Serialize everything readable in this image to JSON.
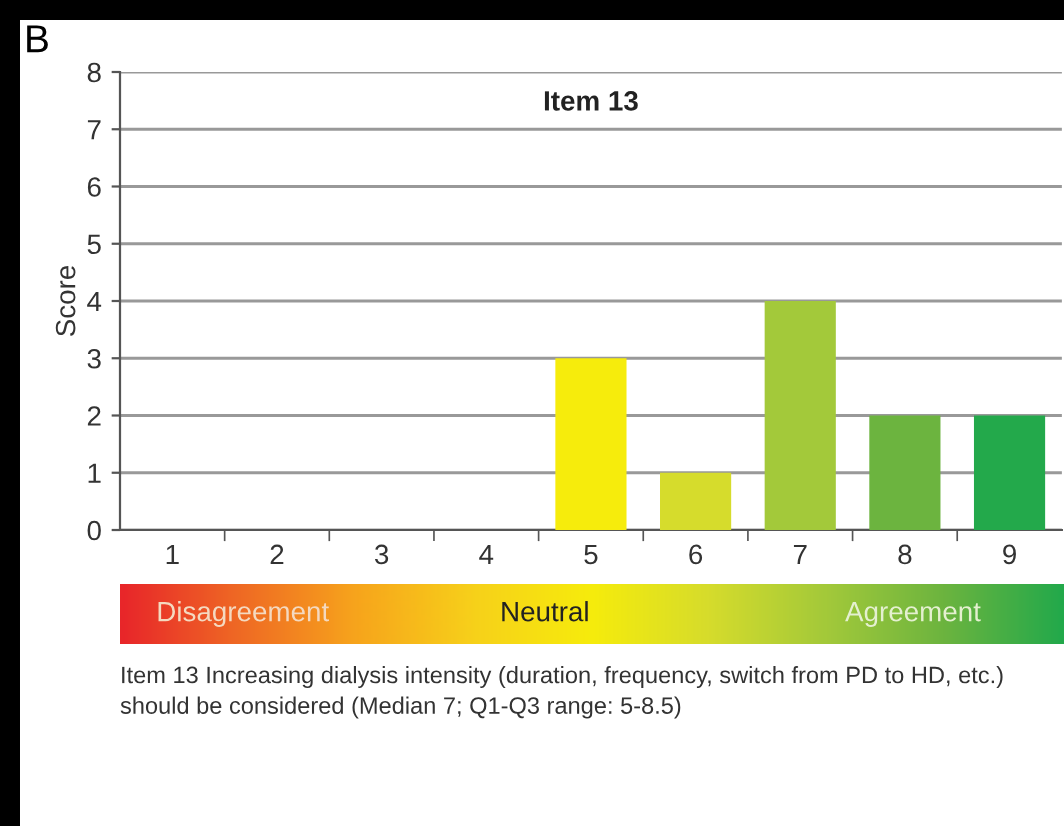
{
  "chart_data": {
    "type": "bar",
    "title": "Item 13",
    "ylabel": "Score",
    "categories": [
      "1",
      "2",
      "3",
      "4",
      "5",
      "6",
      "7",
      "8",
      "9"
    ],
    "values": [
      0,
      0,
      0,
      0,
      3,
      1,
      4,
      2,
      2
    ],
    "colors": [
      "#e8262a",
      "#ef6a24",
      "#f7a51c",
      "#f7d11a",
      "#f6ec0c",
      "#d6dc2c",
      "#a3c93a",
      "#6cb43f",
      "#23a94b"
    ],
    "ylim": [
      0,
      8
    ],
    "yticks": [
      0,
      1,
      2,
      3,
      4,
      5,
      6,
      7,
      8
    ],
    "grid": "y",
    "legend": false,
    "annotations": [
      "B",
      "Disagreement",
      "Neutral",
      "Agreement",
      "Item 13 Increasing dialysis intensity (duration, frequency, switch from PD to HD, etc.) should be considered (Median 7; Q1-Q3 range: 5-8.5)"
    ]
  }
}
